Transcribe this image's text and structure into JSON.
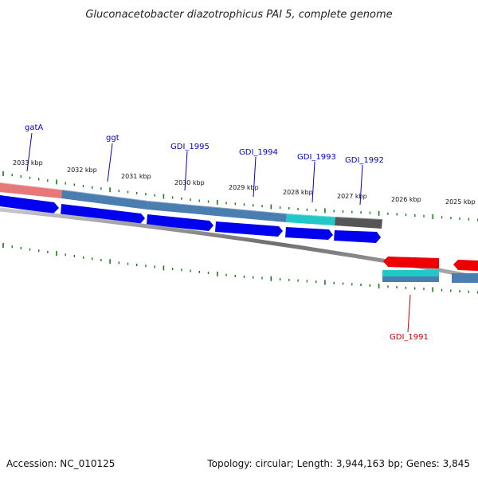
{
  "title": "Gluconacetobacter diazotrophicus PAI 5, complete genome",
  "footer": {
    "accession": "Accession: NC_010125",
    "summary": "Topology: circular; Length: 3,944,163 bp; Genes: 3,845"
  },
  "colors": {
    "forward_cds": "#0000ee",
    "reverse_cds": "#ee0000",
    "gene_blue": "#4a7eb0",
    "gene_red": "#e87878",
    "gene_cyan": "#22c8c8",
    "gene_gray": "#555555",
    "backbone": "#808080",
    "tick": "#1a7a1a",
    "label_forward": "#0000cc",
    "label_reverse": "#cc0000"
  },
  "tick_labels": [
    "2033 kbp",
    "2032 kbp",
    "2031 kbp",
    "2030 kbp",
    "2029 kbp",
    "2028 kbp",
    "2027 kbp",
    "2026 kbp",
    "2025 kbp"
  ],
  "gene_labels": [
    {
      "name": "gatA",
      "strand": "forward"
    },
    {
      "name": "ggt",
      "strand": "forward"
    },
    {
      "name": "GDI_1995",
      "strand": "forward"
    },
    {
      "name": "GDI_1994",
      "strand": "forward"
    },
    {
      "name": "GDI_1993",
      "strand": "forward"
    },
    {
      "name": "GDI_1992",
      "strand": "forward"
    },
    {
      "name": "GDI_1991",
      "strand": "reverse"
    }
  ]
}
